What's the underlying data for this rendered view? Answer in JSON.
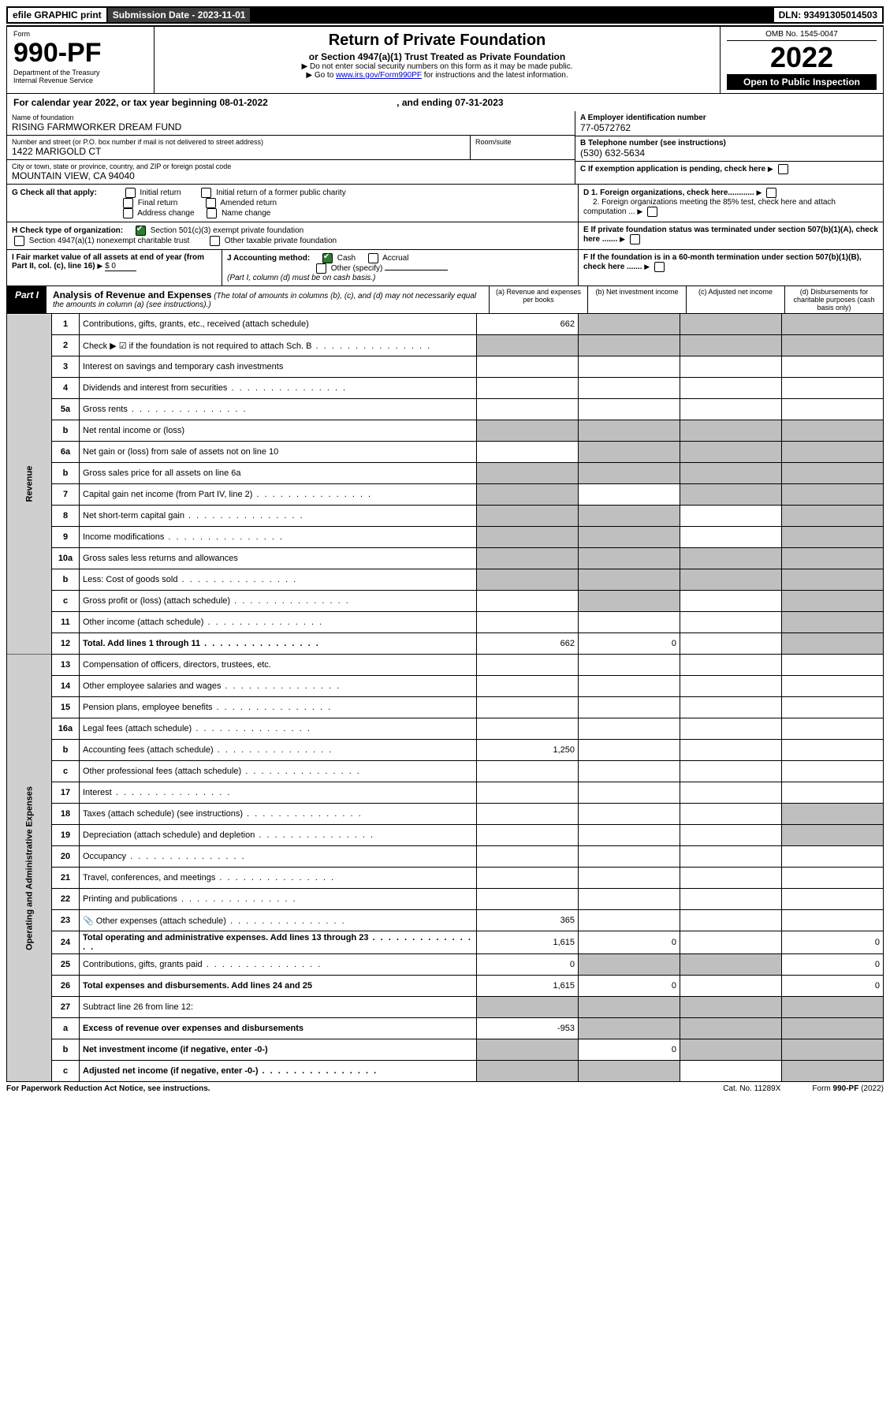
{
  "top": {
    "efile": "efile GRAPHIC print",
    "subdate_label": "Submission Date - 2023-11-01",
    "dln": "DLN: 93491305014503"
  },
  "header": {
    "form_word": "Form",
    "form_num": "990-PF",
    "dept": "Department of the Treasury",
    "irs": "Internal Revenue Service",
    "title": "Return of Private Foundation",
    "subtitle": "or Section 4947(a)(1) Trust Treated as Private Foundation",
    "inst1": "▶ Do not enter social security numbers on this form as it may be made public.",
    "inst2_pre": "▶ Go to ",
    "inst2_link": "www.irs.gov/Form990PF",
    "inst2_post": " for instructions and the latest information.",
    "omb": "OMB No. 1545-0047",
    "year": "2022",
    "open": "Open to Public Inspection"
  },
  "calyear": {
    "text_a": "For calendar year 2022, or tax year beginning 08-01-2022",
    "text_b": ", and ending 07-31-2023"
  },
  "ident": {
    "name_label": "Name of foundation",
    "name": "RISING FARMWORKER DREAM FUND",
    "addr_label": "Number and street (or P.O. box number if mail is not delivered to street address)",
    "addr": "1422 MARIGOLD CT",
    "room_label": "Room/suite",
    "city_label": "City or town, state or province, country, and ZIP or foreign postal code",
    "city": "MOUNTAIN VIEW, CA  94040",
    "a_label": "A Employer identification number",
    "a_val": "77-0572762",
    "b_label": "B Telephone number (see instructions)",
    "b_val": "(530) 632-5634",
    "c_label": "C If exemption application is pending, check here"
  },
  "g": {
    "label": "G Check all that apply:",
    "opts": [
      "Initial return",
      "Initial return of a former public charity",
      "Final return",
      "Amended return",
      "Address change",
      "Name change"
    ]
  },
  "h": {
    "label": "H Check type of organization:",
    "opt1": "Section 501(c)(3) exempt private foundation",
    "opt2": "Section 4947(a)(1) nonexempt charitable trust",
    "opt3": "Other taxable private foundation"
  },
  "i": {
    "label": "I Fair market value of all assets at end of year (from Part II, col. (c), line 16)",
    "val": "$ 0"
  },
  "j": {
    "label": "J Accounting method:",
    "cash": "Cash",
    "accrual": "Accrual",
    "other": "Other (specify)",
    "note": "(Part I, column (d) must be on cash basis.)"
  },
  "d": {
    "d1": "D 1. Foreign organizations, check here............",
    "d2": "2. Foreign organizations meeting the 85% test, check here and attach computation ..."
  },
  "e": {
    "txt": "E  If private foundation status was terminated under section 507(b)(1)(A), check here ......."
  },
  "f": {
    "txt": "F  If the foundation is in a 60-month termination under section 507(b)(1)(B), check here ......."
  },
  "part1": {
    "label": "Part I",
    "title": "Analysis of Revenue and Expenses",
    "note": "(The total of amounts in columns (b), (c), and (d) may not necessarily equal the amounts in column (a) (see instructions).)",
    "col_a": "(a)  Revenue and expenses per books",
    "col_b": "(b)  Net investment income",
    "col_c": "(c)  Adjusted net income",
    "col_d": "(d)  Disbursements for charitable purposes (cash basis only)"
  },
  "sections": {
    "revenue": "Revenue",
    "opadmin": "Operating and Administrative Expenses"
  },
  "rows": [
    {
      "n": "1",
      "d": "Contributions, gifts, grants, etc., received (attach schedule)",
      "a": "662",
      "shade_b": true,
      "shade_c": true,
      "shade_d": true
    },
    {
      "n": "2",
      "d": "Check ▶ ☑ if the foundation is not required to attach Sch. B",
      "dots": true,
      "shade_a": true,
      "shade_b": true,
      "shade_c": true,
      "shade_d": true,
      "noborder_a": true
    },
    {
      "n": "3",
      "d": "Interest on savings and temporary cash investments"
    },
    {
      "n": "4",
      "d": "Dividends and interest from securities",
      "dots": true
    },
    {
      "n": "5a",
      "d": "Gross rents",
      "dots": true
    },
    {
      "n": "b",
      "d": "Net rental income or (loss)",
      "inset": true,
      "shade_a": true,
      "shade_b": true,
      "shade_c": true,
      "shade_d": true
    },
    {
      "n": "6a",
      "d": "Net gain or (loss) from sale of assets not on line 10",
      "shade_b": true,
      "shade_c": true,
      "shade_d": true
    },
    {
      "n": "b",
      "d": "Gross sales price for all assets on line 6a",
      "inset": true,
      "shade_a": true,
      "shade_b": true,
      "shade_c": true,
      "shade_d": true
    },
    {
      "n": "7",
      "d": "Capital gain net income (from Part IV, line 2)",
      "dots": true,
      "shade_a": true,
      "shade_c": true,
      "shade_d": true
    },
    {
      "n": "8",
      "d": "Net short-term capital gain",
      "dots": true,
      "shade_a": true,
      "shade_b": true,
      "shade_d": true
    },
    {
      "n": "9",
      "d": "Income modifications",
      "dots": true,
      "shade_a": true,
      "shade_b": true,
      "shade_d": true
    },
    {
      "n": "10a",
      "d": "Gross sales less returns and allowances",
      "inset": true,
      "shade_a": true,
      "shade_b": true,
      "shade_c": true,
      "shade_d": true
    },
    {
      "n": "b",
      "d": "Less: Cost of goods sold",
      "dots": true,
      "inset": true,
      "shade_a": true,
      "shade_b": true,
      "shade_c": true,
      "shade_d": true
    },
    {
      "n": "c",
      "d": "Gross profit or (loss) (attach schedule)",
      "dots": true,
      "shade_b": true,
      "shade_d": true
    },
    {
      "n": "11",
      "d": "Other income (attach schedule)",
      "dots": true,
      "shade_d": true
    },
    {
      "n": "12",
      "d": "Total. Add lines 1 through 11",
      "dots": true,
      "bold": true,
      "a": "662",
      "b": "0",
      "shade_d": true
    }
  ],
  "rows_exp": [
    {
      "n": "13",
      "d": "Compensation of officers, directors, trustees, etc."
    },
    {
      "n": "14",
      "d": "Other employee salaries and wages",
      "dots": true
    },
    {
      "n": "15",
      "d": "Pension plans, employee benefits",
      "dots": true
    },
    {
      "n": "16a",
      "d": "Legal fees (attach schedule)",
      "dots": true
    },
    {
      "n": "b",
      "d": "Accounting fees (attach schedule)",
      "dots": true,
      "a": "1,250"
    },
    {
      "n": "c",
      "d": "Other professional fees (attach schedule)",
      "dots": true
    },
    {
      "n": "17",
      "d": "Interest",
      "dots": true
    },
    {
      "n": "18",
      "d": "Taxes (attach schedule) (see instructions)",
      "dots": true,
      "shade_d": true
    },
    {
      "n": "19",
      "d": "Depreciation (attach schedule) and depletion",
      "dots": true,
      "shade_d": true
    },
    {
      "n": "20",
      "d": "Occupancy",
      "dots": true
    },
    {
      "n": "21",
      "d": "Travel, conferences, and meetings",
      "dots": true
    },
    {
      "n": "22",
      "d": "Printing and publications",
      "dots": true
    },
    {
      "n": "23",
      "d": "Other expenses (attach schedule)",
      "dots": true,
      "a": "365",
      "clip": true
    },
    {
      "n": "24",
      "d": "Total operating and administrative expenses. Add lines 13 through 23",
      "dots": true,
      "bold": true,
      "a": "1,615",
      "b": "0",
      "dv": "0"
    },
    {
      "n": "25",
      "d": "Contributions, gifts, grants paid",
      "dots": true,
      "a": "0",
      "shade_b": true,
      "shade_c": true,
      "dv": "0"
    },
    {
      "n": "26",
      "d": "Total expenses and disbursements. Add lines 24 and 25",
      "bold": true,
      "a": "1,615",
      "b": "0",
      "dv": "0"
    }
  ],
  "rows_bottom": [
    {
      "n": "27",
      "d": "Subtract line 26 from line 12:",
      "shade_a": true,
      "shade_b": true,
      "shade_c": true,
      "shade_d": true
    },
    {
      "n": "a",
      "d": "Excess of revenue over expenses and disbursements",
      "bold": true,
      "a": "-953",
      "shade_b": true,
      "shade_c": true,
      "shade_d": true
    },
    {
      "n": "b",
      "d": "Net investment income (if negative, enter -0-)",
      "bold": true,
      "shade_a": true,
      "b": "0",
      "shade_c": true,
      "shade_d": true
    },
    {
      "n": "c",
      "d": "Adjusted net income (if negative, enter -0-)",
      "bold": true,
      "dots": true,
      "shade_a": true,
      "shade_b": true,
      "shade_d": true
    }
  ],
  "footer": {
    "left": "For Paperwork Reduction Act Notice, see instructions.",
    "mid": "Cat. No. 11289X",
    "right": "Form 990-PF (2022)"
  }
}
